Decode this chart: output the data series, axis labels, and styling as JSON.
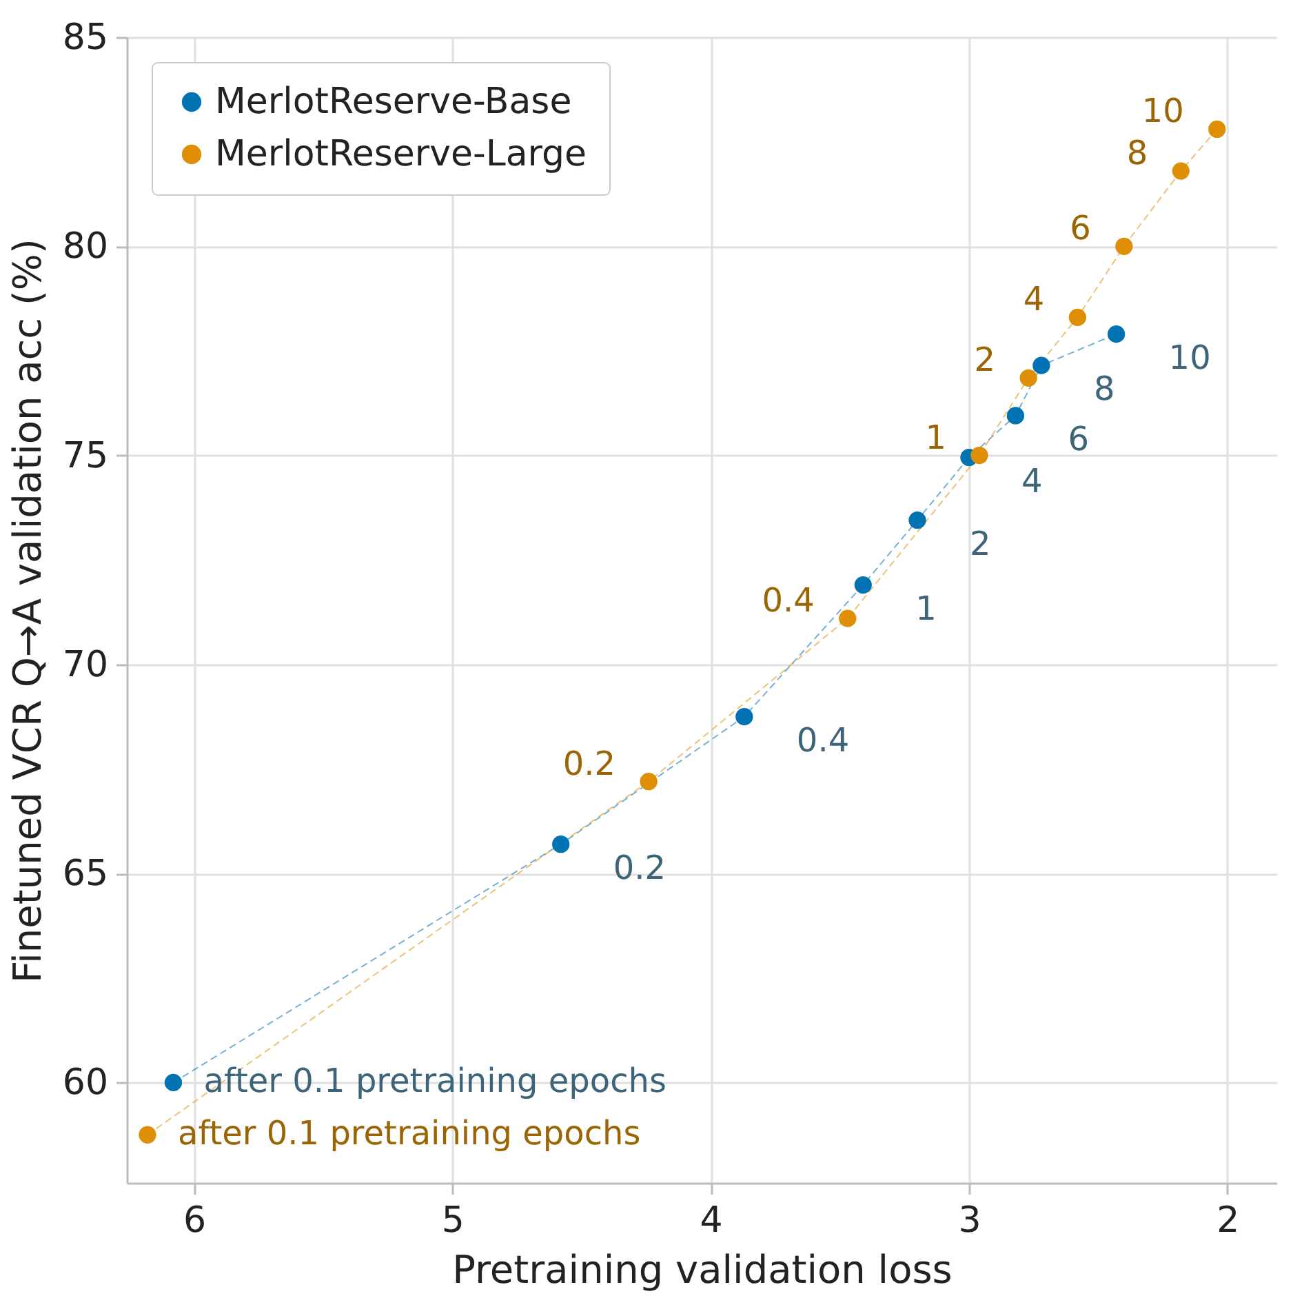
{
  "chart_data": {
    "type": "line",
    "xlabel": "Pretraining validation loss",
    "ylabel": "Finetuned VCR Q→A validation acc (%)",
    "xlim": [
      6.26,
      1.81
    ],
    "ylim": [
      57.6,
      85
    ],
    "xticks": [
      6,
      5,
      4,
      3,
      2
    ],
    "yticks": [
      60,
      65,
      70,
      75,
      80,
      85
    ],
    "grid": true,
    "legend": "top left",
    "marker": "circle",
    "series": [
      {
        "name": "MerlotReserve-Base",
        "color": "#0173b2",
        "line_style": "dashed",
        "x": [
          6.08,
          4.58,
          3.87,
          3.41,
          3.2,
          3.0,
          2.82,
          2.72,
          2.43
        ],
        "values": [
          60.0,
          65.7,
          68.75,
          71.9,
          73.45,
          74.95,
          75.95,
          77.15,
          77.9
        ]
      },
      {
        "name": "MerlotReserve-Large",
        "color": "#de8f05",
        "line_style": "dashed",
        "x": [
          6.18,
          4.24,
          3.47,
          2.96,
          2.77,
          2.58,
          2.4,
          2.18,
          2.04
        ],
        "values": [
          58.75,
          67.2,
          71.1,
          75.0,
          76.85,
          78.3,
          80.0,
          81.8,
          82.8
        ]
      }
    ],
    "annotations": [
      {
        "text": "after 0.1 pretraining epochs",
        "x": 6.08,
        "y": 60.0
      },
      {
        "text": "0.2",
        "x": 4.58,
        "y": 65.7
      },
      {
        "text": "0.4",
        "x": 3.87,
        "y": 68.75
      },
      {
        "text": "1",
        "x": 3.41,
        "y": 71.9
      },
      {
        "text": "2",
        "x": 3.2,
        "y": 73.45
      },
      {
        "text": "4",
        "x": 3.0,
        "y": 74.95
      },
      {
        "text": "6",
        "x": 2.82,
        "y": 75.95
      },
      {
        "text": "8",
        "x": 2.72,
        "y": 77.15
      },
      {
        "text": "10",
        "x": 2.43,
        "y": 77.9
      },
      {
        "text": "after 0.1 pretraining epochs",
        "x": 6.18,
        "y": 58.75
      },
      {
        "text": "0.2",
        "x": 4.24,
        "y": 67.2
      },
      {
        "text": "0.4",
        "x": 3.47,
        "y": 71.1
      },
      {
        "text": "1",
        "x": 2.96,
        "y": 75.0
      },
      {
        "text": "2",
        "x": 2.77,
        "y": 76.85
      },
      {
        "text": "4",
        "x": 2.58,
        "y": 78.3
      },
      {
        "text": "6",
        "x": 2.4,
        "y": 80.0
      },
      {
        "text": "8",
        "x": 2.18,
        "y": 81.8
      },
      {
        "text": "10",
        "x": 2.04,
        "y": 82.8
      }
    ]
  }
}
